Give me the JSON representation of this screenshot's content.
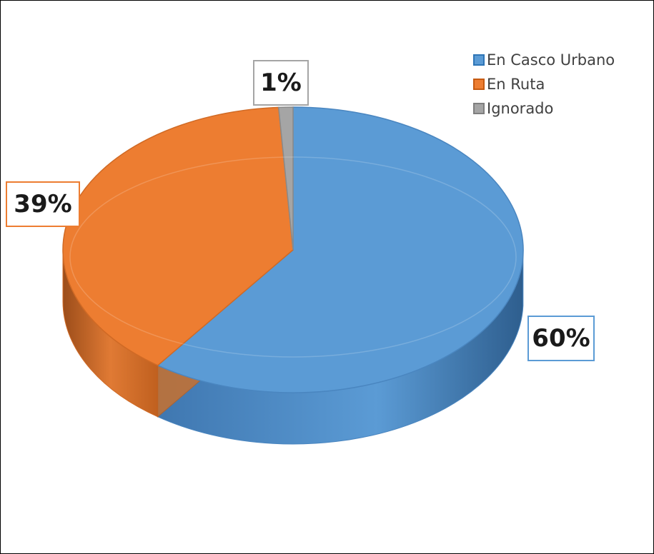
{
  "chart_data": {
    "type": "pie",
    "categories": [
      "En Casco Urbano",
      "En Ruta",
      "Ignorado"
    ],
    "values": [
      60,
      39,
      1
    ],
    "labels": [
      "60%",
      "39%",
      "1%"
    ],
    "colors": [
      "#5b9bd5",
      "#ed7d31",
      "#a5a5a5"
    ],
    "title": "",
    "legend_position": "top-right",
    "style": "3d"
  }
}
